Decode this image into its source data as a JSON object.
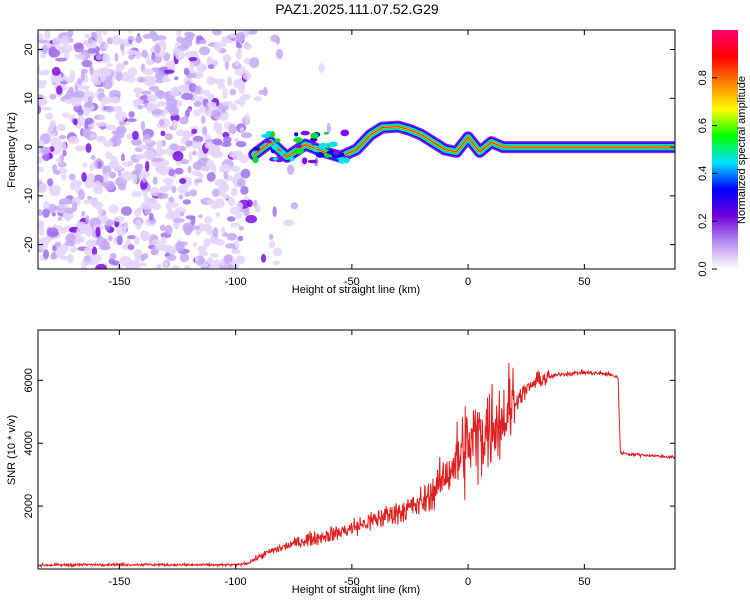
{
  "title": "PAZ1.2025.111.07.52.G29",
  "chart_data": [
    {
      "type": "heatmap",
      "xlabel": "Height of straight line (km)",
      "ylabel": "Frequency (Hz)",
      "xlim": [
        -185,
        89
      ],
      "ylim": [
        -25,
        24
      ],
      "xticks": [
        -150,
        -100,
        -50,
        0,
        50
      ],
      "yticks": [
        -20,
        -10,
        0,
        10,
        20
      ],
      "colorbar": {
        "label": "Normalized spectral amplitude",
        "range": [
          0,
          1
        ],
        "ticks": [
          0.0,
          0.2,
          0.4,
          0.6,
          0.8
        ],
        "colors": [
          "#ffffff",
          "#b890f0",
          "#7000e0",
          "#0000ff",
          "#00e0ff",
          "#00ff00",
          "#ffff00",
          "#ff8000",
          "#ff0000",
          "#ff0070"
        ]
      },
      "carrier_trace": {
        "height_km": [
          -92,
          -85,
          -78,
          -70,
          -62,
          -55,
          -48,
          -42,
          -37,
          -30,
          -25,
          -20,
          -15,
          -10,
          -5,
          0,
          5,
          10,
          15,
          20,
          89
        ],
        "frequency_hz": [
          -1.5,
          1.0,
          -2.0,
          0.5,
          -1.0,
          -2.0,
          -0.5,
          2.5,
          4.0,
          4.2,
          3.5,
          2.5,
          1.0,
          -0.5,
          -1.0,
          2.0,
          -1.0,
          1.0,
          0.0,
          0.0,
          0.0
        ]
      },
      "noise_region_km": [
        -185,
        -95
      ]
    },
    {
      "type": "line",
      "xlabel": "Height of straight line (km)",
      "ylabel": "SNR (10 * v/v)",
      "xlim": [
        -185,
        89
      ],
      "ylim": [
        0,
        7600
      ],
      "xticks": [
        -150,
        -100,
        -50,
        0,
        50
      ],
      "yticks": [
        2000,
        4000,
        6000
      ],
      "series": [
        {
          "color": "#e02020",
          "x": [
            -185,
            -160,
            -140,
            -120,
            -100,
            -95,
            -90,
            -85,
            -80,
            -75,
            -70,
            -65,
            -60,
            -55,
            -50,
            -45,
            -40,
            -35,
            -30,
            -25,
            -20,
            -15,
            -10,
            -5,
            0,
            5,
            10,
            15,
            20,
            25,
            30,
            35,
            40,
            50,
            60,
            64.5,
            65.5,
            70,
            80,
            89
          ],
          "y": [
            120,
            140,
            140,
            130,
            130,
            180,
            380,
            560,
            680,
            800,
            920,
            1000,
            1080,
            1180,
            1300,
            1420,
            1560,
            1700,
            1820,
            1950,
            2100,
            2450,
            2950,
            3400,
            3900,
            4250,
            4600,
            4800,
            5300,
            5700,
            6000,
            6100,
            6200,
            6250,
            6200,
            6100,
            3700,
            3650,
            3600,
            3550
          ]
        }
      ]
    }
  ]
}
